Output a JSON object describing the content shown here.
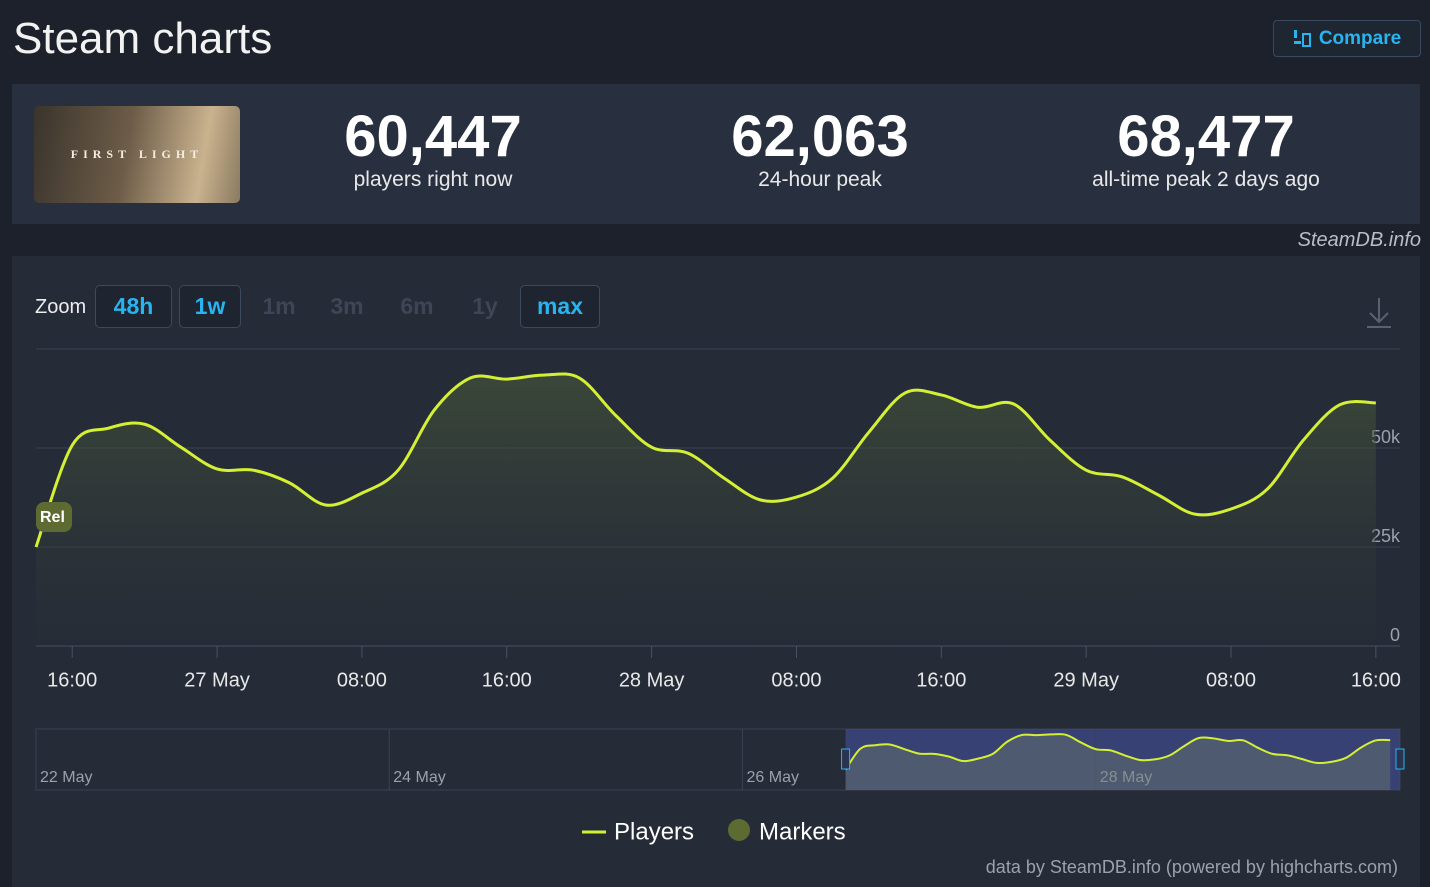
{
  "header": {
    "title": "Steam charts",
    "compare": "Compare"
  },
  "game": {
    "name": "FIRST LIGHT"
  },
  "stats": [
    {
      "value": "60,447",
      "label": "players right now"
    },
    {
      "value": "62,063",
      "label": "24-hour peak"
    },
    {
      "value": "68,477",
      "label": "all-time peak 2 days ago"
    }
  ],
  "credit": "SteamDB.info",
  "zoom": {
    "label": "Zoom",
    "buttons": [
      {
        "label": "48h",
        "enabled": true
      },
      {
        "label": "1w",
        "enabled": true
      },
      {
        "label": "1m",
        "enabled": false
      },
      {
        "label": "3m",
        "enabled": false
      },
      {
        "label": "6m",
        "enabled": false
      },
      {
        "label": "1y",
        "enabled": false
      },
      {
        "label": "max",
        "enabled": true
      }
    ]
  },
  "chart_data": {
    "type": "line",
    "x": [
      "26 May 14:00",
      "26 May 16:00",
      "26 May 18:00",
      "26 May 20:00",
      "26 May 22:00",
      "27 May 00:00",
      "27 May 02:00",
      "27 May 04:00",
      "27 May 06:00",
      "27 May 08:00",
      "27 May 10:00",
      "27 May 12:00",
      "27 May 14:00",
      "27 May 16:00",
      "27 May 18:00",
      "27 May 20:00",
      "27 May 22:00",
      "28 May 00:00",
      "28 May 02:00",
      "28 May 04:00",
      "28 May 06:00",
      "28 May 08:00",
      "28 May 10:00",
      "28 May 12:00",
      "28 May 14:00",
      "28 May 16:00",
      "28 May 18:00",
      "28 May 20:00",
      "28 May 22:00",
      "29 May 00:00",
      "29 May 02:00",
      "29 May 04:00",
      "29 May 06:00",
      "29 May 08:00",
      "29 May 10:00",
      "29 May 12:00",
      "29 May 14:00",
      "29 May 16:00"
    ],
    "series": [
      {
        "name": "Players",
        "color": "#d4f035",
        "values": [
          25000,
          50700,
          55000,
          56000,
          50200,
          44700,
          44400,
          41200,
          35600,
          38600,
          44400,
          59600,
          67700,
          67400,
          68400,
          67700,
          58300,
          50200,
          48700,
          42400,
          36900,
          37600,
          42400,
          54000,
          63900,
          63400,
          60300,
          61100,
          52000,
          44400,
          42700,
          38100,
          33300,
          34600,
          39600,
          52000,
          60900,
          61400
        ]
      }
    ],
    "xlim": [
      "26 May 14:00",
      "29 May 17:20"
    ],
    "xticks": [
      {
        "value": "26 May 16:00",
        "label": "16:00"
      },
      {
        "value": "27 May 00:00",
        "label": "27 May"
      },
      {
        "value": "27 May 08:00",
        "label": "08:00"
      },
      {
        "value": "27 May 16:00",
        "label": "16:00"
      },
      {
        "value": "28 May 00:00",
        "label": "28 May"
      },
      {
        "value": "28 May 08:00",
        "label": "08:00"
      },
      {
        "value": "28 May 16:00",
        "label": "16:00"
      },
      {
        "value": "29 May 00:00",
        "label": "29 May"
      },
      {
        "value": "29 May 08:00",
        "label": "08:00"
      },
      {
        "value": "29 May 16:00",
        "label": "16:00"
      }
    ],
    "ylim": [
      0,
      75000
    ],
    "yticks": [
      0,
      {
        "value": 25000,
        "label": "25k"
      },
      {
        "value": 50000,
        "label": "50k"
      }
    ],
    "grid": true,
    "annotations": [
      {
        "label": "Rel",
        "x": "26 May 14:00"
      }
    ],
    "marker_legend": {
      "name": "Markers",
      "color": "#5d6b32"
    },
    "navigator": {
      "xlim": [
        "22 May 00:00",
        "29 May 17:20"
      ],
      "labels": [
        "22 May",
        "24 May",
        "26 May",
        "28 May"
      ]
    },
    "footer": "data by SteamDB.info (powered by highcharts.com)"
  }
}
